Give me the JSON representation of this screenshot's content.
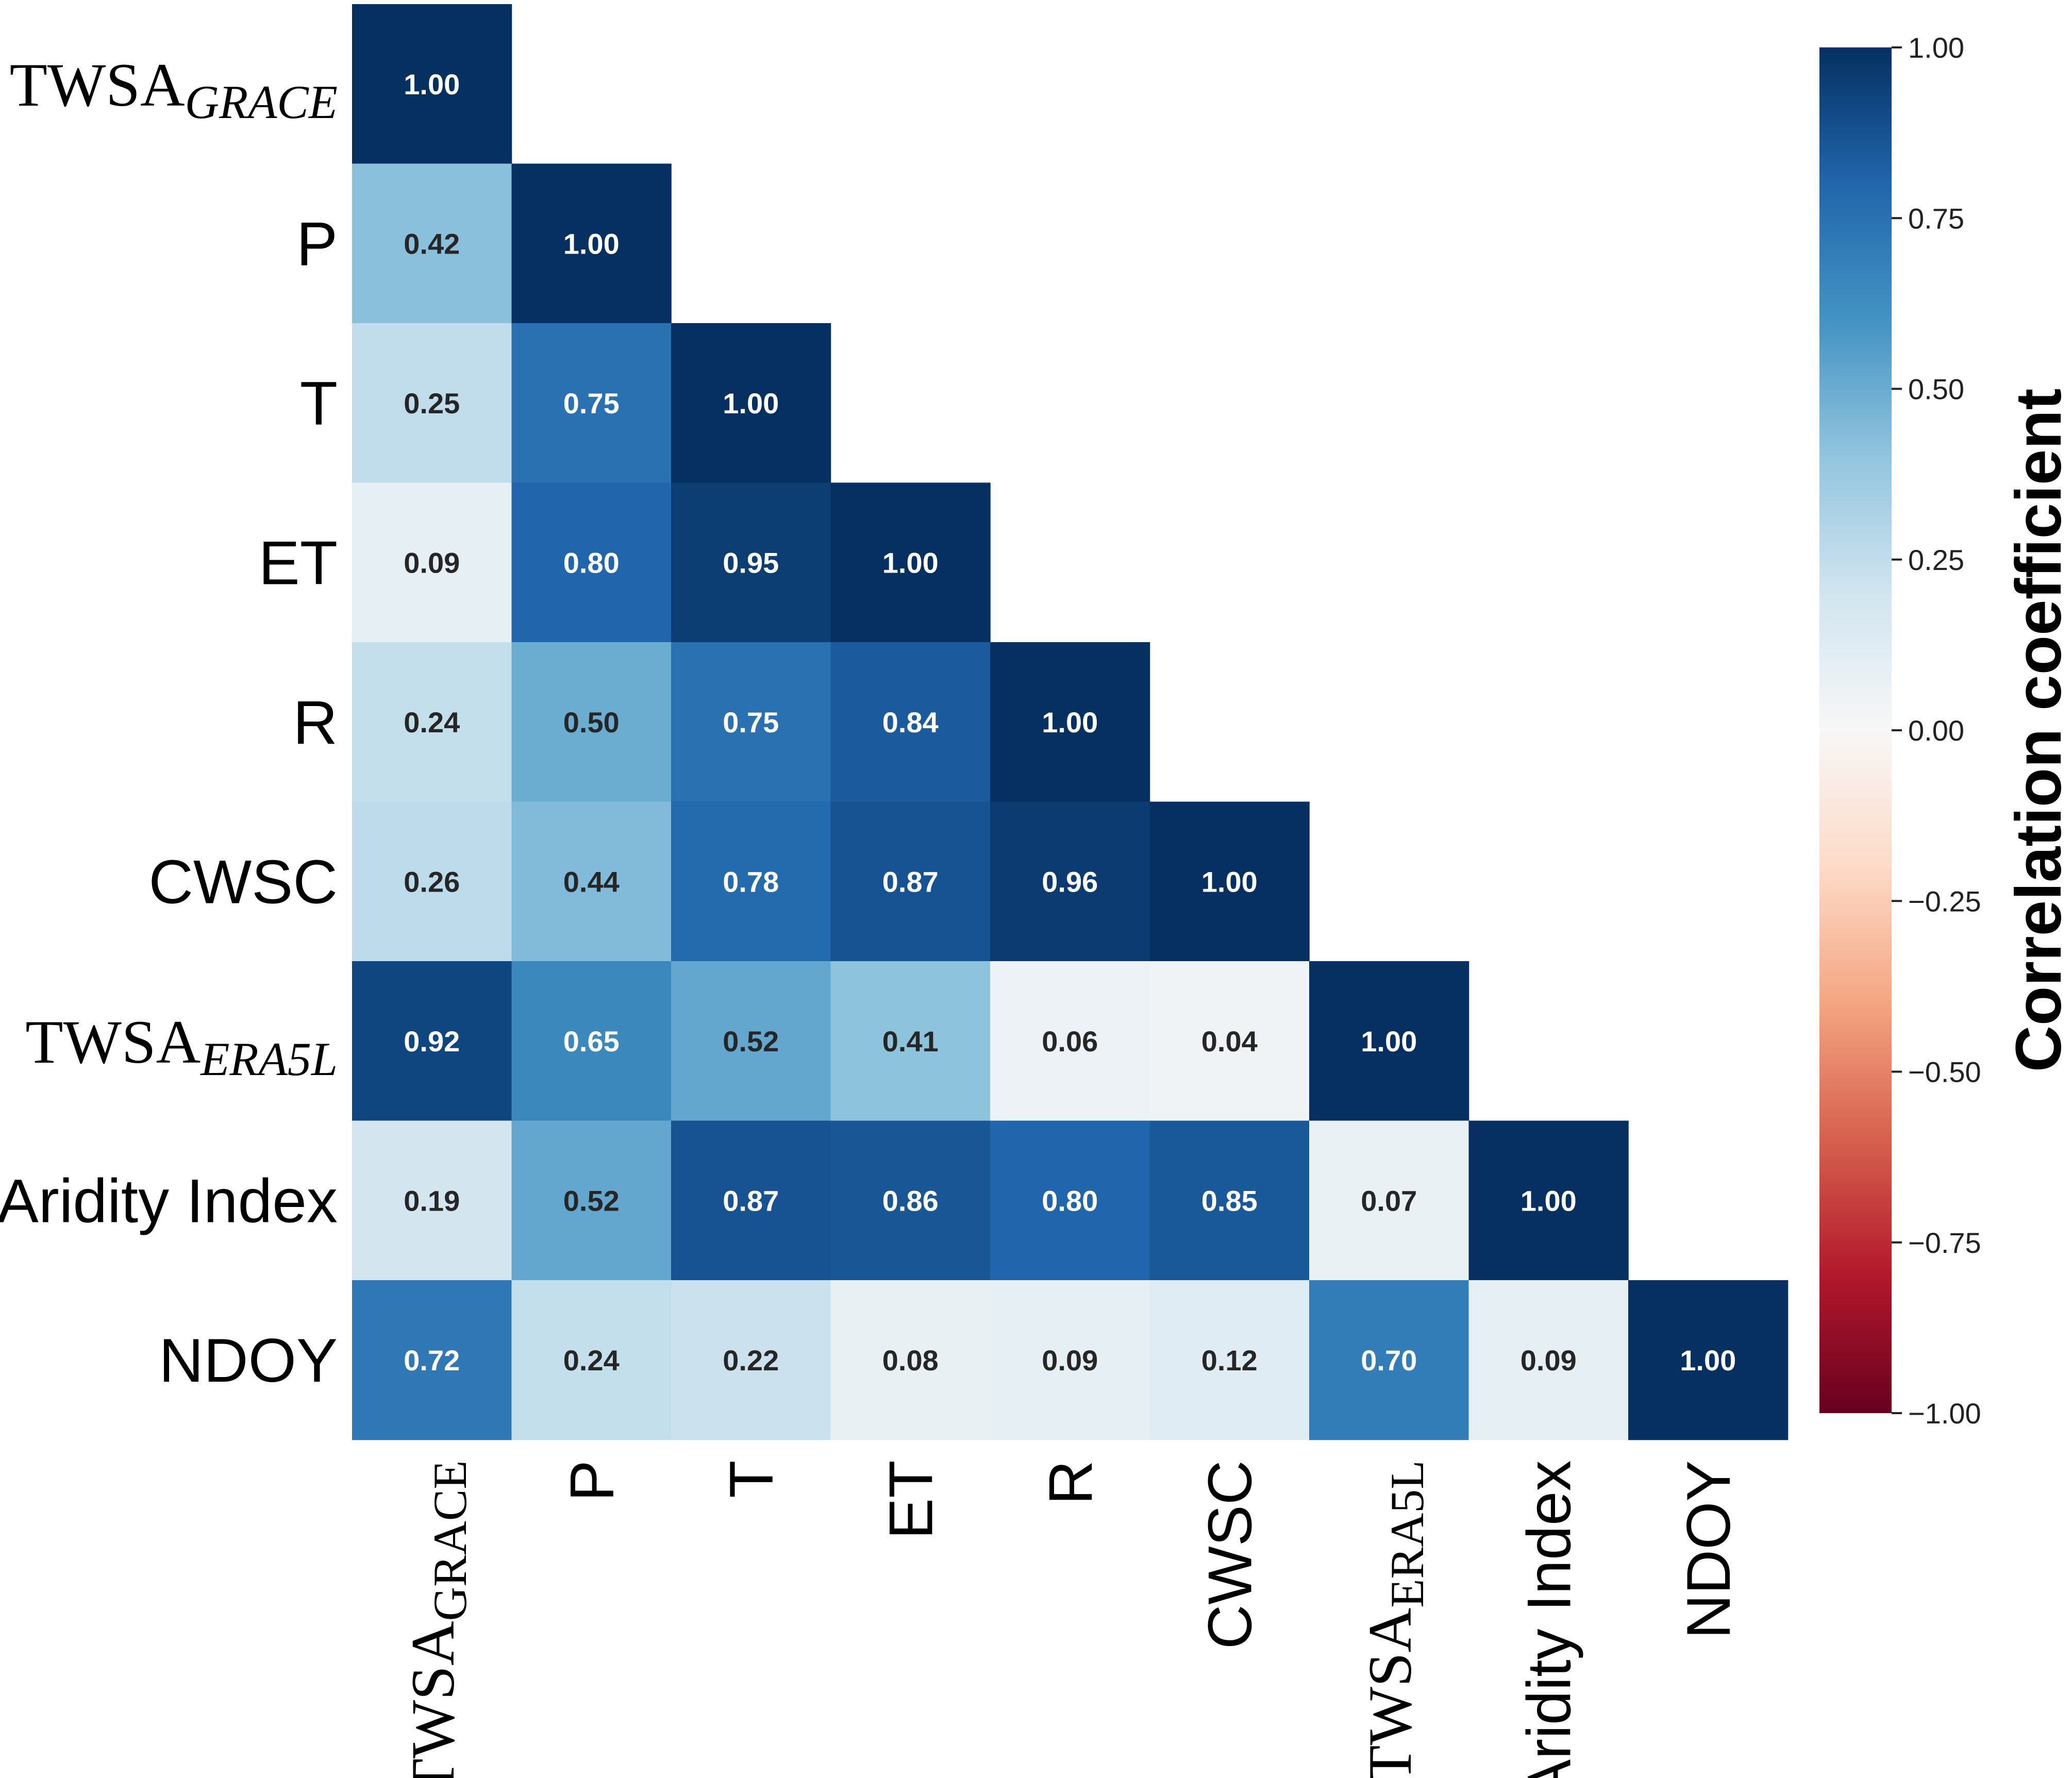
{
  "chart_data": {
    "type": "heatmap",
    "variables": [
      {
        "base": "TWSA",
        "sub": "GRACE"
      },
      {
        "base": "P",
        "sub": ""
      },
      {
        "base": "T",
        "sub": ""
      },
      {
        "base": "ET",
        "sub": ""
      },
      {
        "base": "R",
        "sub": ""
      },
      {
        "base": "CWSC",
        "sub": ""
      },
      {
        "base": "TWSA",
        "sub": "ERA5L"
      },
      {
        "base": "Aridity Index",
        "sub": ""
      },
      {
        "base": "NDOY",
        "sub": ""
      }
    ],
    "matrix_lower_triangle": [
      [
        1.0
      ],
      [
        0.42,
        1.0
      ],
      [
        0.25,
        0.75,
        1.0
      ],
      [
        0.09,
        0.8,
        0.95,
        1.0
      ],
      [
        0.24,
        0.5,
        0.75,
        0.84,
        1.0
      ],
      [
        0.26,
        0.44,
        0.78,
        0.87,
        0.96,
        1.0
      ],
      [
        0.92,
        0.65,
        0.52,
        0.41,
        0.06,
        0.04,
        1.0
      ],
      [
        0.19,
        0.52,
        0.87,
        0.86,
        0.8,
        0.85,
        0.07,
        1.0
      ],
      [
        0.72,
        0.24,
        0.22,
        0.08,
        0.09,
        0.12,
        0.7,
        0.09,
        1.0
      ]
    ],
    "colorbar": {
      "label": "Correlation coefficient",
      "range": [
        -1.0,
        1.0
      ],
      "ticks": [
        "1.00",
        "0.75",
        "0.50",
        "0.25",
        "0.00",
        "−0.25",
        "−0.50",
        "−0.75",
        "−1.00"
      ],
      "tick_values": [
        1.0,
        0.75,
        0.5,
        0.25,
        0.0,
        -0.25,
        -0.5,
        -0.75,
        -1.0
      ],
      "colormap": "RdBu"
    },
    "text_colors": {
      "light": "#ffffff",
      "dark": "#262626"
    }
  }
}
